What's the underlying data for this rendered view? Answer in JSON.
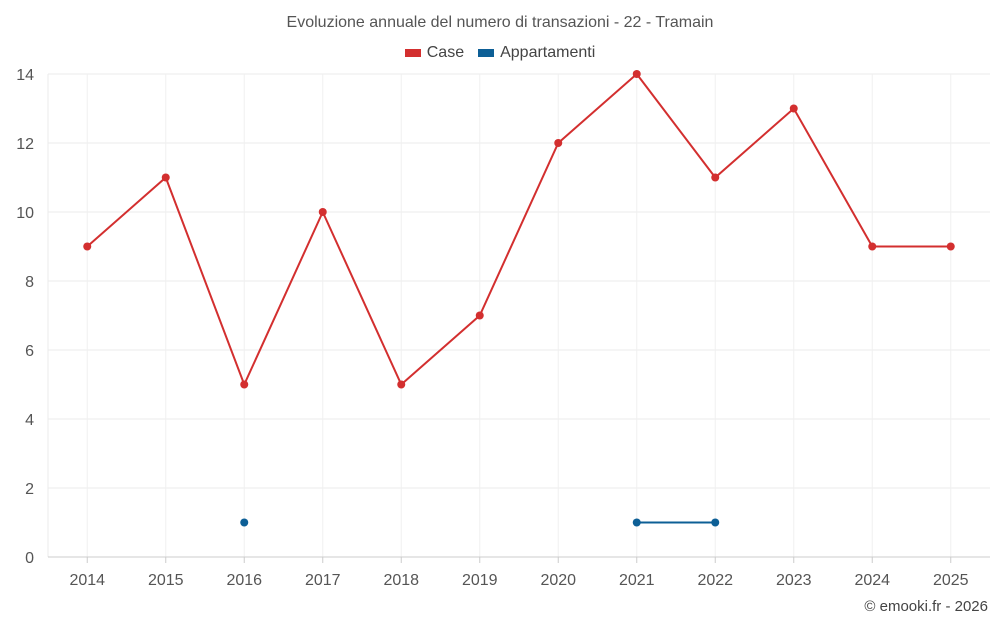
{
  "chart_data": {
    "type": "line",
    "title": "Evoluzione annuale del numero di transazioni - 22 - Tramain",
    "categories": [
      "2014",
      "2015",
      "2016",
      "2017",
      "2018",
      "2019",
      "2020",
      "2021",
      "2022",
      "2023",
      "2024",
      "2025"
    ],
    "ylim": [
      0,
      14
    ],
    "yticks": [
      0,
      2,
      4,
      6,
      8,
      10,
      12,
      14
    ],
    "grid": true,
    "legend_position": "top-center",
    "xlabel": "",
    "ylabel": "",
    "series": [
      {
        "name": "Case",
        "color": "#d32f2f",
        "values": [
          9,
          11,
          5,
          10,
          5,
          7,
          12,
          14,
          11,
          13,
          9,
          9
        ]
      },
      {
        "name": "Appartamenti",
        "color": "#0d5f96",
        "values": [
          null,
          null,
          1,
          null,
          null,
          null,
          null,
          1,
          1,
          null,
          null,
          null
        ]
      }
    ]
  },
  "credit": "© emooki.fr - 2026"
}
